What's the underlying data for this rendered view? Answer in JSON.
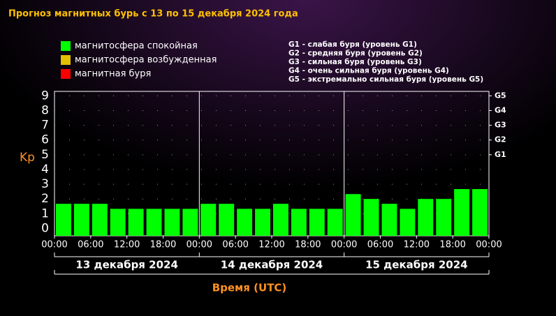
{
  "chart_data": {
    "type": "bar",
    "title": "Прогноз магнитных бурь с 13 по 15 декабря 2024 года",
    "legend": [
      {
        "name": "магнитосфера спокойная",
        "color": "#00ff00"
      },
      {
        "name": "магнитосфера возбужденная",
        "color": "#e0c000"
      },
      {
        "name": "магнитная буря",
        "color": "#ff0000"
      }
    ],
    "scale_notes": [
      "G1 - слабая буря (уровень G1)",
      "G2 - средняя буря (уровень G2)",
      "G3 - сильная буря (уровень G3)",
      "G4 - очень сильная буря (уровень G4)",
      "G5 - экстремально сильная буря (уровень G5)"
    ],
    "ylabel": "Kp",
    "xlabel": "Время (UTC)",
    "days": [
      "13 декабря 2024",
      "14 декабря 2024",
      "15 декабря 2024"
    ],
    "x": [
      0,
      3,
      6,
      9,
      12,
      15,
      18,
      21,
      24,
      27,
      30,
      33,
      36,
      39,
      42,
      45,
      48,
      51,
      54,
      57,
      60,
      63,
      66,
      69
    ],
    "bar_width": 3,
    "series": [
      {
        "name": "магнитосфера спокойная",
        "color": "#00ff00",
        "values": [
          1.67,
          1.67,
          1.67,
          1.33,
          1.33,
          1.33,
          1.33,
          1.33,
          1.67,
          1.67,
          1.33,
          1.33,
          1.67,
          1.33,
          1.33,
          1.33,
          2.33,
          2,
          1.67,
          1.33,
          2,
          2,
          2.67,
          2.67
        ]
      }
    ],
    "xlim": [
      0,
      72
    ],
    "xticks": [
      {
        "value": 0,
        "label": "00:00"
      },
      {
        "value": 6,
        "label": "06:00"
      },
      {
        "value": 12,
        "label": "12:00"
      },
      {
        "value": 18,
        "label": "18:00"
      },
      {
        "value": 24,
        "label": "00:00"
      },
      {
        "value": 30,
        "label": "06:00"
      },
      {
        "value": 36,
        "label": "12:00"
      },
      {
        "value": 42,
        "label": "18:00"
      },
      {
        "value": 48,
        "label": "00:00"
      },
      {
        "value": 54,
        "label": "06:00"
      },
      {
        "value": 60,
        "label": "12:00"
      },
      {
        "value": 66,
        "label": "18:00"
      },
      {
        "value": 72,
        "label": "00:00"
      }
    ],
    "ylim": [
      -0.5,
      9.3
    ],
    "yticks": [
      0,
      1,
      2,
      3,
      4,
      5,
      6,
      7,
      8,
      9
    ],
    "y2lim": [
      -0.5,
      9.3
    ],
    "y2ticks": [
      {
        "value": 5,
        "label": "G1"
      },
      {
        "value": 6,
        "label": "G2"
      },
      {
        "value": 7,
        "label": "G3"
      },
      {
        "value": 8,
        "label": "G4"
      },
      {
        "value": 9,
        "label": "G5"
      }
    ],
    "grid": true
  }
}
